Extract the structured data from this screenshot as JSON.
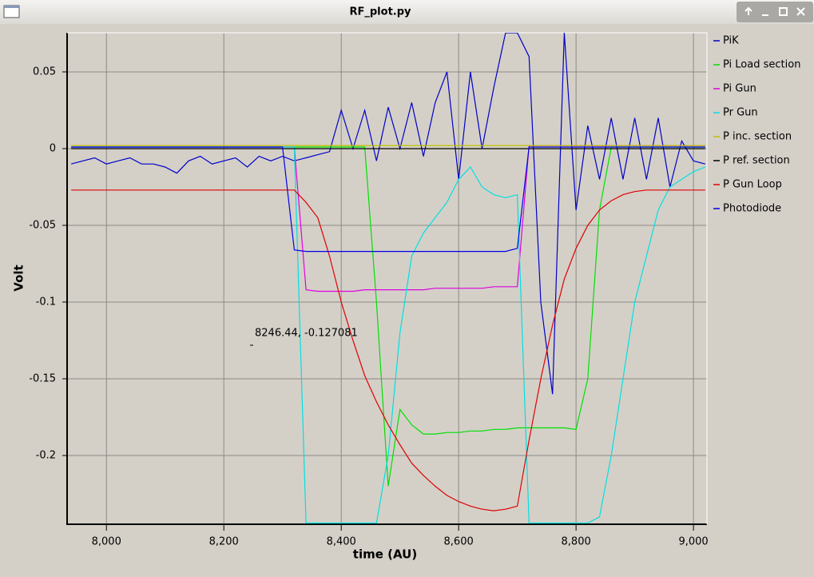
{
  "window": {
    "title": "RF_plot.py"
  },
  "chart_data": {
    "type": "line",
    "xlabel": "time (AU)",
    "ylabel": "Volt",
    "annotation": "8246.44, -0.127081",
    "grid": true,
    "legend": "right",
    "xlim": [
      7933,
      9023
    ],
    "ylim": [
      -0.2448,
      0.0755
    ],
    "xticks": [
      {
        "value": 8000,
        "label": "8,000"
      },
      {
        "value": 8200,
        "label": "8,200"
      },
      {
        "value": 8400,
        "label": "8,400"
      },
      {
        "value": 8600,
        "label": "8,600"
      },
      {
        "value": 8800,
        "label": "8,800"
      },
      {
        "value": 9000,
        "label": "9,000"
      }
    ],
    "yticks": [
      0.05,
      0,
      -0.05,
      -0.1,
      -0.15,
      -0.2
    ],
    "x": [
      7940,
      7960,
      7980,
      8000,
      8020,
      8040,
      8060,
      8080,
      8100,
      8120,
      8140,
      8160,
      8180,
      8200,
      8220,
      8240,
      8260,
      8280,
      8300,
      8320,
      8340,
      8360,
      8380,
      8400,
      8420,
      8440,
      8460,
      8480,
      8500,
      8520,
      8540,
      8560,
      8580,
      8600,
      8620,
      8640,
      8660,
      8680,
      8700,
      8720,
      8740,
      8760,
      8780,
      8800,
      8820,
      8840,
      8860,
      8880,
      8900,
      8920,
      8940,
      8960,
      8980,
      9000,
      9020
    ],
    "series": [
      {
        "name": "PiK",
        "color": "#0000c8",
        "values": [
          -0.01,
          -0.008,
          -0.006,
          -0.01,
          -0.008,
          -0.006,
          -0.01,
          -0.01,
          -0.012,
          -0.016,
          -0.008,
          -0.005,
          -0.01,
          -0.008,
          -0.006,
          -0.012,
          -0.005,
          -0.008,
          -0.005,
          -0.008,
          -0.006,
          -0.004,
          -0.002,
          0.025,
          0,
          0.025,
          -0.008,
          0.027,
          0,
          0.03,
          -0.005,
          0.03,
          0.05,
          -0.02,
          0.05,
          0,
          0.04,
          0.0755,
          0.0755,
          0.06,
          -0.1,
          -0.16,
          0.0755,
          -0.04,
          0.015,
          -0.02,
          0.02,
          -0.02,
          0.02,
          -0.02,
          0.02,
          -0.025,
          0.005,
          -0.008,
          -0.01
        ]
      },
      {
        "name": "Pi Load section",
        "color": "#00e000",
        "values": [
          0.001,
          0.001,
          0.001,
          0.001,
          0.001,
          0.001,
          0.001,
          0.001,
          0.001,
          0.001,
          0.001,
          0.001,
          0.001,
          0.001,
          0.001,
          0.001,
          0.001,
          0.001,
          0.001,
          0.001,
          0.001,
          0.001,
          0.001,
          0.001,
          0.001,
          0.001,
          -0.1,
          -0.22,
          -0.17,
          -0.18,
          -0.186,
          -0.186,
          -0.185,
          -0.185,
          -0.184,
          -0.184,
          -0.183,
          -0.183,
          -0.182,
          -0.182,
          -0.182,
          -0.182,
          -0.182,
          -0.183,
          -0.15,
          -0.04,
          0.001,
          0.001,
          0.001,
          0.001,
          0.001,
          0.001,
          0.001,
          0.001,
          0.001
        ]
      },
      {
        "name": "Pi Gun",
        "color": "#e000e0",
        "values": [
          0.001,
          0.001,
          0.001,
          0.001,
          0.001,
          0.001,
          0.001,
          0.001,
          0.001,
          0.001,
          0.001,
          0.001,
          0.001,
          0.001,
          0.001,
          0.001,
          0.001,
          0.001,
          0.001,
          0.001,
          -0.092,
          -0.093,
          -0.093,
          -0.093,
          -0.093,
          -0.092,
          -0.092,
          -0.092,
          -0.092,
          -0.092,
          -0.092,
          -0.091,
          -0.091,
          -0.091,
          -0.091,
          -0.091,
          -0.09,
          -0.09,
          -0.09,
          0.002,
          0.002,
          0.002,
          0.002,
          0.002,
          0.002,
          0.002,
          0.002,
          0.002,
          0.002,
          0.002,
          0.002,
          0.002,
          0.002,
          0.002,
          0.002
        ]
      },
      {
        "name": "Pr Gun",
        "color": "#00e0e0",
        "values": [
          0.001,
          0.001,
          0.001,
          0.001,
          0.001,
          0.001,
          0.001,
          0.001,
          0.001,
          0.001,
          0.001,
          0.001,
          0.001,
          0.001,
          0.001,
          0.001,
          0.001,
          0.001,
          0.001,
          0.001,
          -0.244,
          -0.244,
          -0.244,
          -0.244,
          -0.244,
          -0.244,
          -0.244,
          -0.2,
          -0.12,
          -0.07,
          -0.055,
          -0.045,
          -0.035,
          -0.02,
          -0.012,
          -0.025,
          -0.03,
          -0.032,
          -0.03,
          -0.244,
          -0.244,
          -0.244,
          -0.244,
          -0.244,
          -0.244,
          -0.24,
          -0.2,
          -0.15,
          -0.1,
          -0.07,
          -0.04,
          -0.025,
          -0.02,
          -0.015,
          -0.012
        ]
      },
      {
        "name": "P inc. section",
        "color": "#c0c000",
        "values": [
          0.002,
          0.002,
          0.002,
          0.002,
          0.002,
          0.002,
          0.002,
          0.002,
          0.002,
          0.002,
          0.002,
          0.002,
          0.002,
          0.002,
          0.002,
          0.002,
          0.002,
          0.002,
          0.002,
          0.002,
          0.002,
          0.002,
          0.002,
          0.002,
          0.002,
          0.002,
          0.002,
          0.002,
          0.002,
          0.002,
          0.002,
          0.002,
          0.002,
          0.002,
          0.002,
          0.002,
          0.002,
          0.002,
          0.002,
          0.002,
          0.002,
          0.002,
          0.002,
          0.002,
          0.002,
          0.002,
          0.002,
          0.002,
          0.002,
          0.002,
          0.002,
          0.002,
          0.002,
          0.002,
          0.002
        ]
      },
      {
        "name": "P ref. section",
        "color": "#000000",
        "values": [
          0,
          0,
          0,
          0,
          0,
          0,
          0,
          0,
          0,
          0,
          0,
          0,
          0,
          0,
          0,
          0,
          0,
          0,
          0,
          0,
          0,
          0,
          0,
          0,
          0,
          0,
          0,
          0,
          0,
          0,
          0,
          0,
          0,
          0,
          0,
          0,
          0,
          0,
          0,
          0,
          0,
          0,
          0,
          0,
          0,
          0,
          0,
          0,
          0,
          0,
          0,
          0,
          0,
          0,
          0
        ]
      },
      {
        "name": "P Gun Loop",
        "color": "#e00000",
        "values": [
          -0.027,
          -0.027,
          -0.027,
          -0.027,
          -0.027,
          -0.027,
          -0.027,
          -0.027,
          -0.027,
          -0.027,
          -0.027,
          -0.027,
          -0.027,
          -0.027,
          -0.027,
          -0.027,
          -0.027,
          -0.027,
          -0.027,
          -0.027,
          -0.035,
          -0.045,
          -0.07,
          -0.1,
          -0.125,
          -0.148,
          -0.165,
          -0.18,
          -0.193,
          -0.205,
          -0.213,
          -0.22,
          -0.226,
          -0.23,
          -0.233,
          -0.235,
          -0.236,
          -0.235,
          -0.233,
          -0.19,
          -0.15,
          -0.115,
          -0.085,
          -0.065,
          -0.05,
          -0.04,
          -0.034,
          -0.03,
          -0.028,
          -0.027,
          -0.027,
          -0.027,
          -0.027,
          -0.027,
          -0.027
        ]
      },
      {
        "name": "Photodiode",
        "color": "#0000e8",
        "values": [
          0.001,
          0.001,
          0.001,
          0.001,
          0.001,
          0.001,
          0.001,
          0.001,
          0.001,
          0.001,
          0.001,
          0.001,
          0.001,
          0.001,
          0.001,
          0.001,
          0.001,
          0.001,
          0.001,
          -0.066,
          -0.067,
          -0.067,
          -0.067,
          -0.067,
          -0.067,
          -0.067,
          -0.067,
          -0.067,
          -0.067,
          -0.067,
          -0.067,
          -0.067,
          -0.067,
          -0.067,
          -0.067,
          -0.067,
          -0.067,
          -0.067,
          -0.065,
          0.001,
          0.001,
          0.001,
          0.001,
          0.001,
          0.001,
          0.001,
          0.001,
          0.001,
          0.001,
          0.001,
          0.001,
          0.001,
          0.001,
          0.001,
          0.001
        ]
      }
    ]
  }
}
